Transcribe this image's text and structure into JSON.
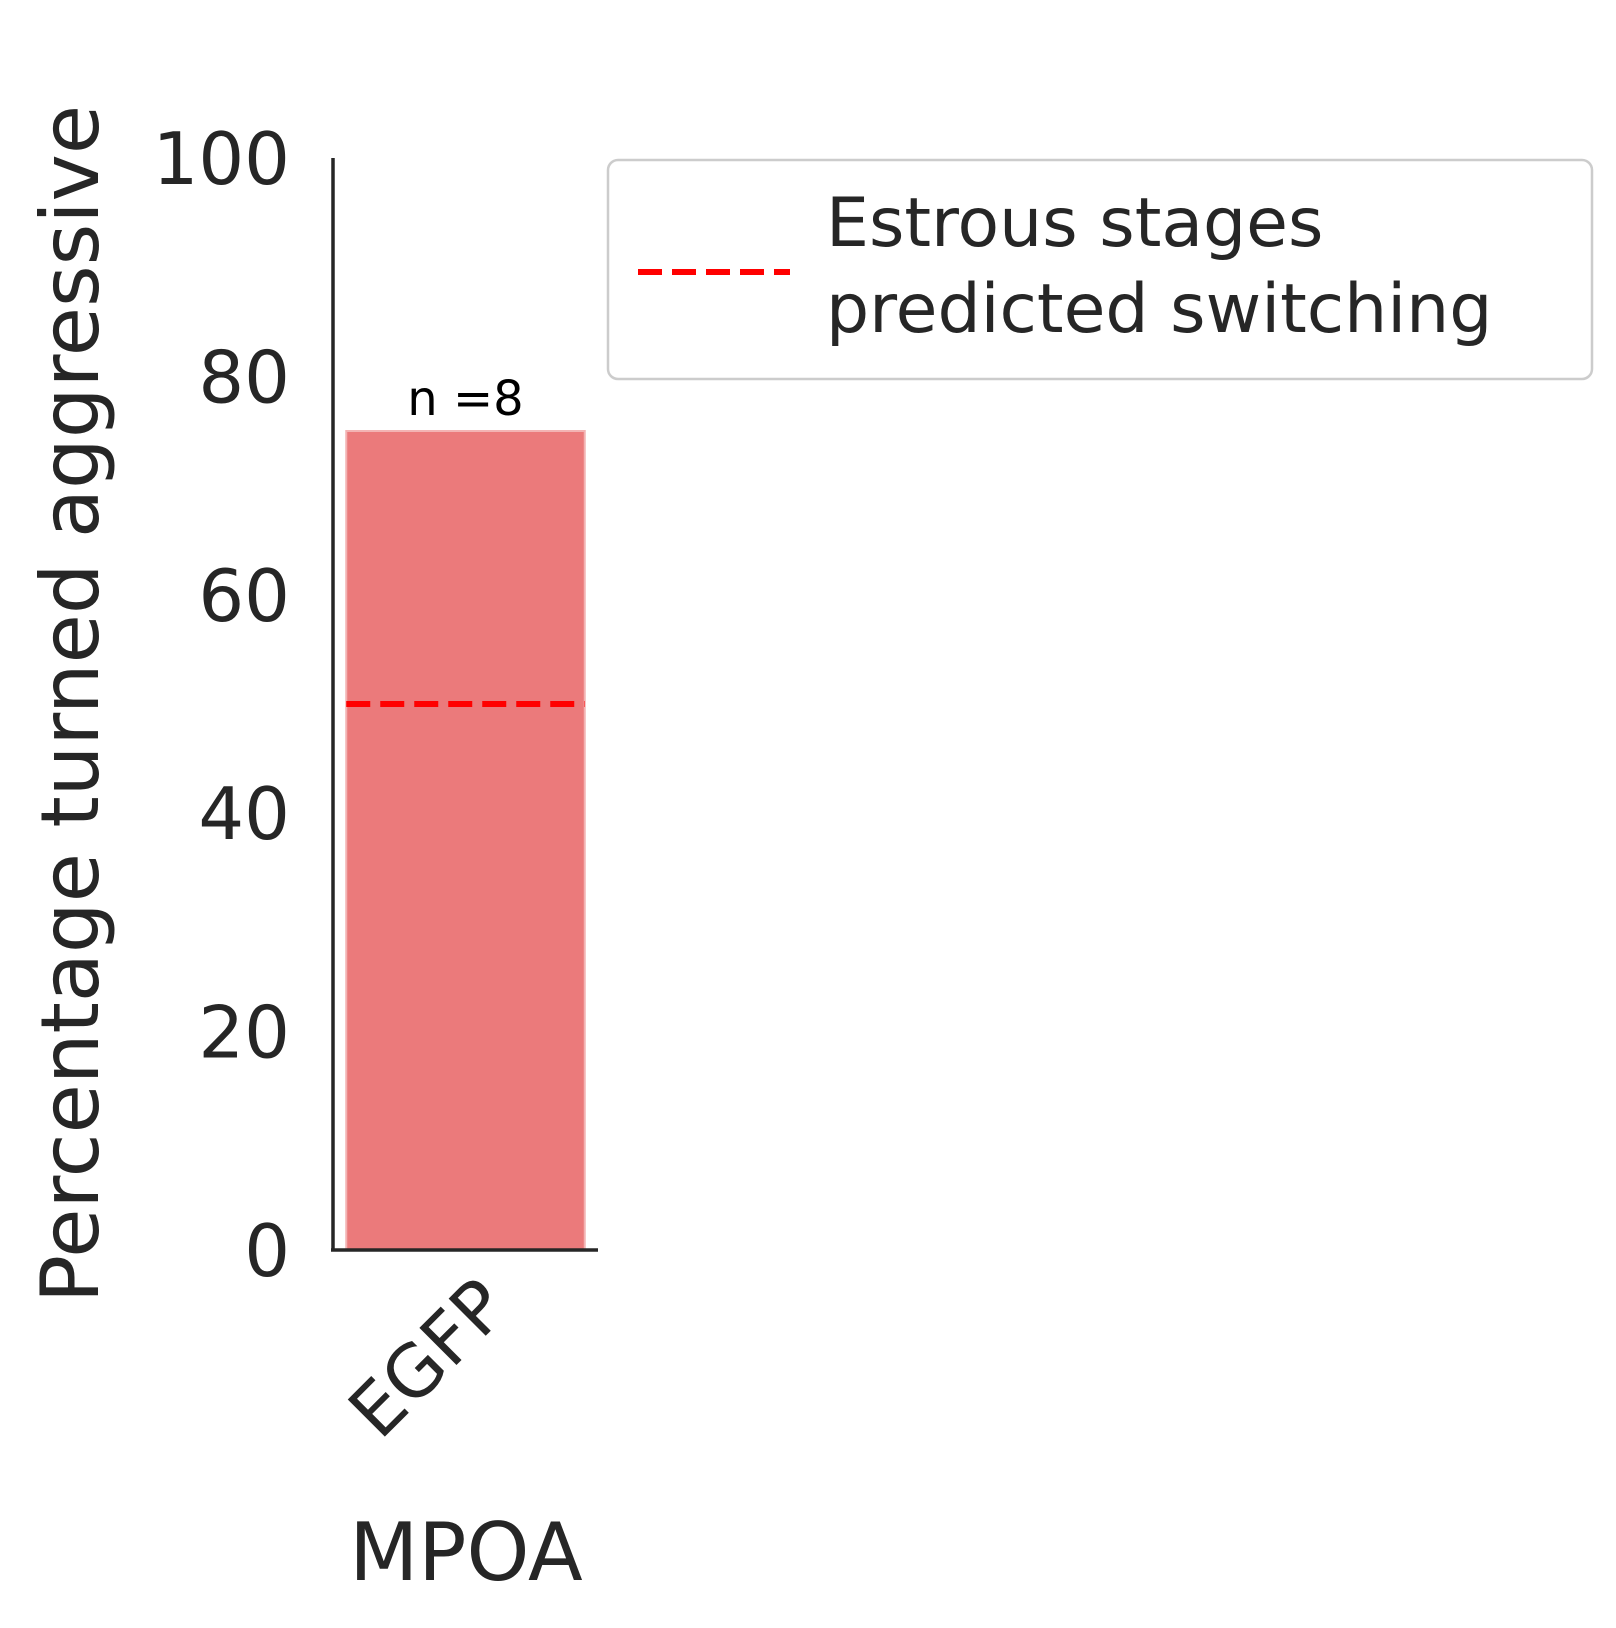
{
  "chart_data": {
    "type": "bar",
    "categories": [
      "EGFP"
    ],
    "values": [
      75
    ],
    "bar_color": "#eb7a7b",
    "annotations": [
      "n =8"
    ],
    "reference_line": {
      "value": 50,
      "label_lines": [
        "Estrous stages",
        "predicted switching"
      ],
      "color": "#ff0000",
      "style": "dashed"
    },
    "xlabel": "MPOA",
    "ylabel": "Percentage turned aggressive",
    "ylim": [
      0,
      100
    ],
    "yticks": [
      0,
      20,
      40,
      60,
      80,
      100
    ],
    "ytick_labels": [
      "0",
      "20",
      "40",
      "60",
      "80",
      "100"
    ],
    "xtick_rotation": "45",
    "grid": false,
    "legend_placement": "upper-right outside"
  }
}
